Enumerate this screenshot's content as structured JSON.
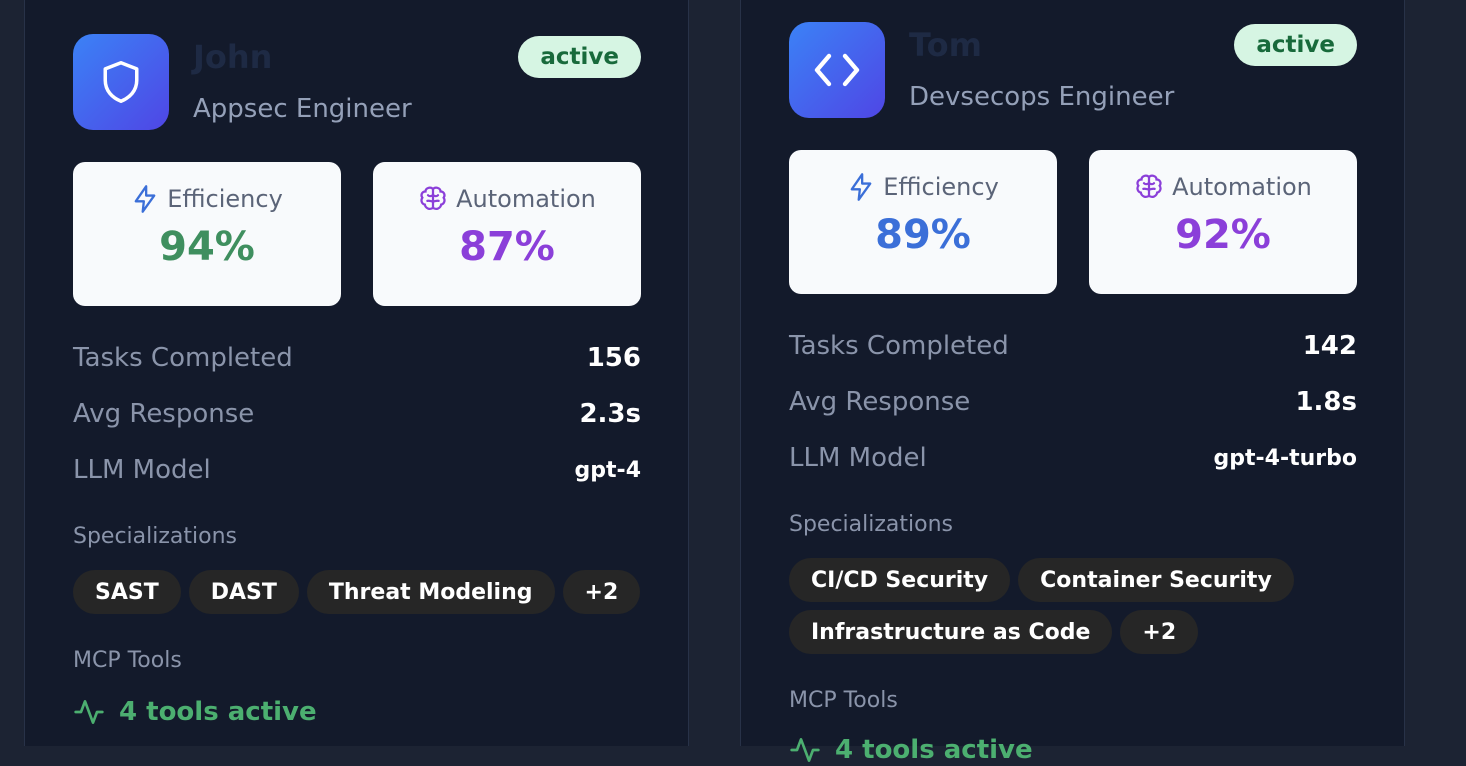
{
  "agents": [
    {
      "name": "John",
      "role": "Appsec Engineer",
      "status": "active",
      "avatar_icon": "shield-icon",
      "metrics": {
        "efficiency_label": "Efficiency",
        "efficiency_value": "94%",
        "efficiency_color": "#3f8f5f",
        "automation_label": "Automation",
        "automation_value": "87%",
        "automation_color": "#8b3fd9"
      },
      "stats": {
        "tasks_label": "Tasks Completed",
        "tasks_value": "156",
        "response_label": "Avg Response",
        "response_value": "2.3s",
        "model_label": "LLM Model",
        "model_value": "gpt-4"
      },
      "specializations_label": "Specializations",
      "specializations": [
        "SAST",
        "DAST",
        "Threat Modeling",
        "+2"
      ],
      "tools_label": "MCP Tools",
      "tools_status": "4 tools active"
    },
    {
      "name": "Tom",
      "role": "Devsecops Engineer",
      "status": "active",
      "avatar_icon": "code-icon",
      "metrics": {
        "efficiency_label": "Efficiency",
        "efficiency_value": "89%",
        "efficiency_color": "#3b6fd8",
        "automation_label": "Automation",
        "automation_value": "92%",
        "automation_color": "#8b3fd9"
      },
      "stats": {
        "tasks_label": "Tasks Completed",
        "tasks_value": "142",
        "response_label": "Avg Response",
        "response_value": "1.8s",
        "model_label": "LLM Model",
        "model_value": "gpt-4-turbo"
      },
      "specializations_label": "Specializations",
      "specializations": [
        "CI/CD Security",
        "Container Security",
        "Infrastructure as Code",
        "+2"
      ],
      "tools_label": "MCP Tools",
      "tools_status": "4 tools active"
    }
  ],
  "colors": {
    "page_bg": "#1c2333",
    "card_bg": "#131a2b",
    "status_bg": "#d6f5e3",
    "status_text": "#186a3b",
    "tools_green": "#4caf70",
    "avatar_gradient_start": "#3b82f6",
    "avatar_gradient_end": "#4f46e5"
  }
}
